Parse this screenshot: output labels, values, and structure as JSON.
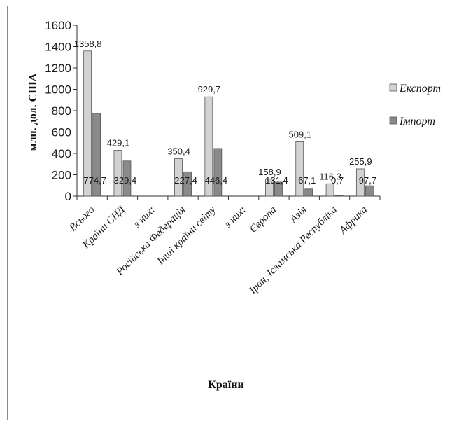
{
  "chart_data": {
    "type": "bar",
    "title": "",
    "xlabel": "Країни",
    "ylabel": "млн. дол. США",
    "ylim": [
      0,
      1600
    ],
    "yticks": [
      0,
      200,
      400,
      600,
      800,
      1000,
      1200,
      1400,
      1600
    ],
    "grid": false,
    "legend_position": "right",
    "categories": [
      "Всього",
      "Країни СНД",
      "з них:",
      "Російська Федерація",
      "Інші країни світу",
      "з них:",
      "Європа",
      "Азія",
      "Іран, Ісламська Республіка",
      "Африка"
    ],
    "series": [
      {
        "name": "Експорт",
        "color": "#d2d2d2",
        "values": [
          1358.8,
          429.1,
          null,
          350.4,
          929.7,
          null,
          158.9,
          509.1,
          116.3,
          255.9
        ],
        "labels": [
          "1358,8",
          "429,1",
          "",
          "350,4",
          "929,7",
          "",
          "158,9",
          "509,1",
          "116,3",
          "255,9"
        ]
      },
      {
        "name": "Імпорт",
        "color": "#8a8a8a",
        "values": [
          774.7,
          329.4,
          null,
          227.4,
          446.4,
          null,
          131.4,
          67.1,
          0.7,
          97.7
        ],
        "labels": [
          "774,7",
          "329,4",
          "",
          "227,4",
          "446,4",
          "",
          "131,4",
          "67,1",
          "0,7",
          "97,7"
        ]
      }
    ]
  }
}
